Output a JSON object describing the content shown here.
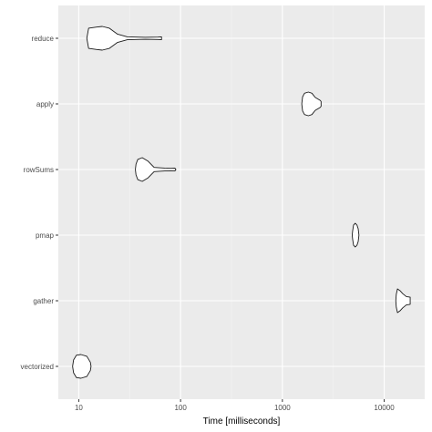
{
  "chart_data": {
    "type": "violin",
    "orientation": "horizontal",
    "xlabel": "Time [milliseconds]",
    "ylabel": "",
    "x_scale": "log10",
    "xlim": [
      6.3,
      25000
    ],
    "x_major_ticks": [
      10,
      100,
      1000,
      10000
    ],
    "x_tick_labels": [
      "10",
      "100",
      "1000",
      "10000"
    ],
    "grid": true,
    "categories": [
      "vectorized",
      "gather",
      "pmap",
      "rowSums",
      "apply",
      "reduce"
    ],
    "series": [
      {
        "name": "reduce",
        "profile": [
          [
            12,
            0.0
          ],
          [
            12.5,
            0.85
          ],
          [
            15,
            0.95
          ],
          [
            17,
            1.0
          ],
          [
            20,
            0.85
          ],
          [
            24,
            0.35
          ],
          [
            30,
            0.12
          ],
          [
            45,
            0.08
          ],
          [
            60,
            0.1
          ],
          [
            65,
            0.12
          ],
          [
            65,
            0.0
          ]
        ]
      },
      {
        "name": "apply",
        "profile": [
          [
            1550,
            0.0
          ],
          [
            1580,
            0.6
          ],
          [
            1650,
            0.9
          ],
          [
            1800,
            1.0
          ],
          [
            1950,
            0.9
          ],
          [
            2100,
            0.55
          ],
          [
            2350,
            0.3
          ],
          [
            2400,
            0.2
          ],
          [
            2400,
            0.0
          ]
        ]
      },
      {
        "name": "rowSums",
        "profile": [
          [
            36,
            0.0
          ],
          [
            36.5,
            0.45
          ],
          [
            38,
            0.85
          ],
          [
            42,
            1.0
          ],
          [
            48,
            0.7
          ],
          [
            55,
            0.18
          ],
          [
            70,
            0.12
          ],
          [
            80,
            0.1
          ],
          [
            88,
            0.12
          ],
          [
            90,
            0.0
          ]
        ]
      },
      {
        "name": "pmap",
        "profile": [
          [
            4850,
            0.0
          ],
          [
            4900,
            0.35
          ],
          [
            5000,
            0.85
          ],
          [
            5200,
            1.0
          ],
          [
            5400,
            0.85
          ],
          [
            5550,
            0.55
          ],
          [
            5650,
            0.0
          ]
        ]
      },
      {
        "name": "gather",
        "profile": [
          [
            13000,
            0.0
          ],
          [
            13150,
            0.55
          ],
          [
            13500,
            1.0
          ],
          [
            14300,
            0.85
          ],
          [
            15200,
            0.6
          ],
          [
            16500,
            0.35
          ],
          [
            18000,
            0.3
          ],
          [
            18000,
            0.0
          ]
        ]
      },
      {
        "name": "vectorized",
        "profile": [
          [
            8.7,
            0.0
          ],
          [
            8.9,
            0.55
          ],
          [
            9.5,
            0.95
          ],
          [
            10.5,
            1.0
          ],
          [
            12,
            0.85
          ],
          [
            13,
            0.35
          ],
          [
            13.2,
            0.0
          ]
        ]
      }
    ]
  }
}
